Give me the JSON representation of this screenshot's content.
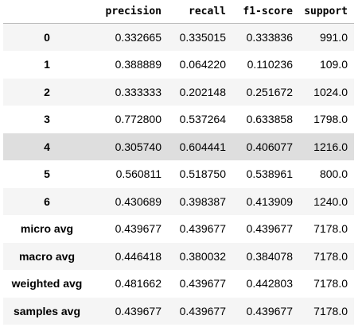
{
  "table": {
    "columns": [
      "precision",
      "recall",
      "f1-score",
      "support"
    ],
    "rows": [
      {
        "label": "0",
        "precision": "0.332665",
        "recall": "0.335015",
        "f1_score": "0.333836",
        "support": "991.0"
      },
      {
        "label": "1",
        "precision": "0.388889",
        "recall": "0.064220",
        "f1_score": "0.110236",
        "support": "109.0"
      },
      {
        "label": "2",
        "precision": "0.333333",
        "recall": "0.202148",
        "f1_score": "0.251672",
        "support": "1024.0"
      },
      {
        "label": "3",
        "precision": "0.772800",
        "recall": "0.537264",
        "f1_score": "0.633858",
        "support": "1798.0"
      },
      {
        "label": "4",
        "precision": "0.305740",
        "recall": "0.604441",
        "f1_score": "0.406077",
        "support": "1216.0"
      },
      {
        "label": "5",
        "precision": "0.560811",
        "recall": "0.518750",
        "f1_score": "0.538961",
        "support": "800.0"
      },
      {
        "label": "6",
        "precision": "0.430689",
        "recall": "0.398387",
        "f1_score": "0.413909",
        "support": "1240.0"
      },
      {
        "label": "micro avg",
        "precision": "0.439677",
        "recall": "0.439677",
        "f1_score": "0.439677",
        "support": "7178.0"
      },
      {
        "label": "macro avg",
        "precision": "0.446418",
        "recall": "0.380032",
        "f1_score": "0.384078",
        "support": "7178.0"
      },
      {
        "label": "weighted avg",
        "precision": "0.481662",
        "recall": "0.439677",
        "f1_score": "0.442803",
        "support": "7178.0"
      },
      {
        "label": "samples avg",
        "precision": "0.439677",
        "recall": "0.439677",
        "f1_score": "0.439677",
        "support": "7178.0"
      }
    ],
    "hovered_row_index": 4
  }
}
